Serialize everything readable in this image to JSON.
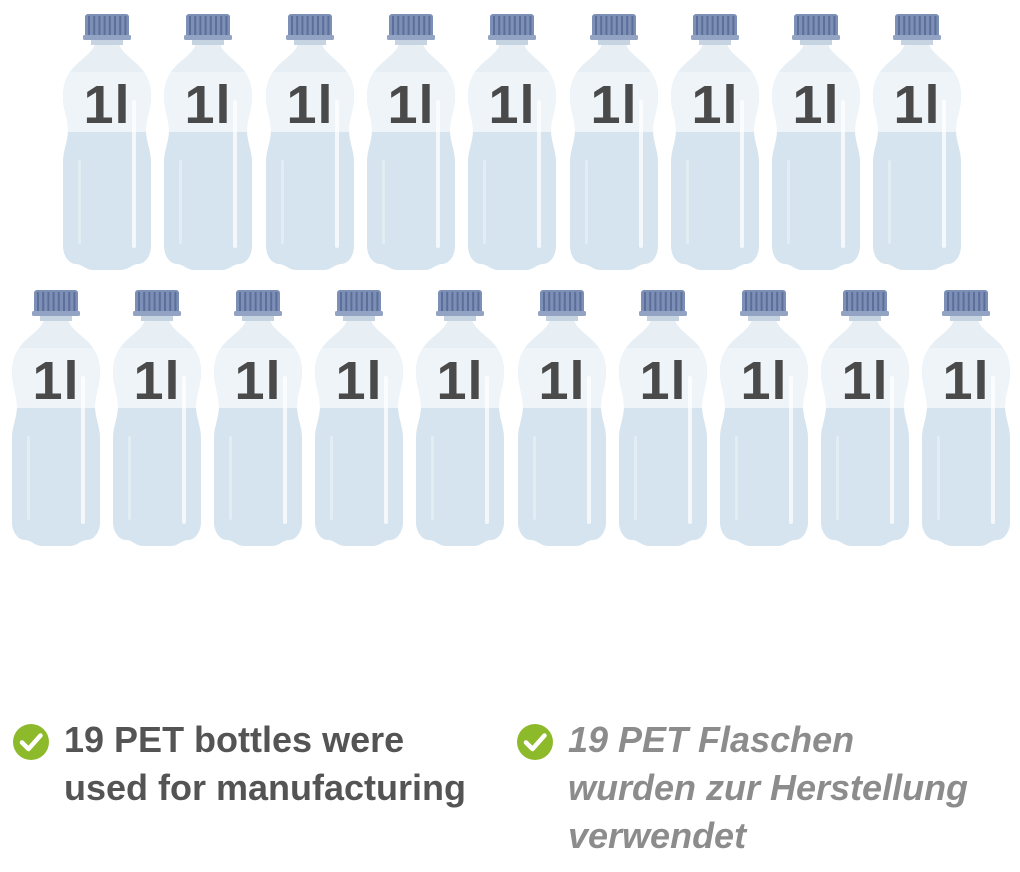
{
  "bottles": {
    "label": "1l",
    "rows": [
      9,
      10
    ],
    "colors": {
      "cap": "#7c8fb6",
      "cap_ridge": "#5d6f99",
      "body": "#d5e4ee",
      "body_light": "#e7eff5",
      "label_band": "#eef4f8",
      "label_text": "#4a4a4a"
    }
  },
  "captions": {
    "english": {
      "icon": "check-circle-icon",
      "lines": [
        "19 PET bottles were",
        "used for manufacturing"
      ],
      "color": "#545454"
    },
    "german": {
      "icon": "check-circle-icon",
      "lines": [
        "19 PET Flaschen",
        "wurden zur Herstellung",
        "verwendet"
      ],
      "color": "#8c8c8c"
    },
    "accent": "#8cba2a"
  }
}
